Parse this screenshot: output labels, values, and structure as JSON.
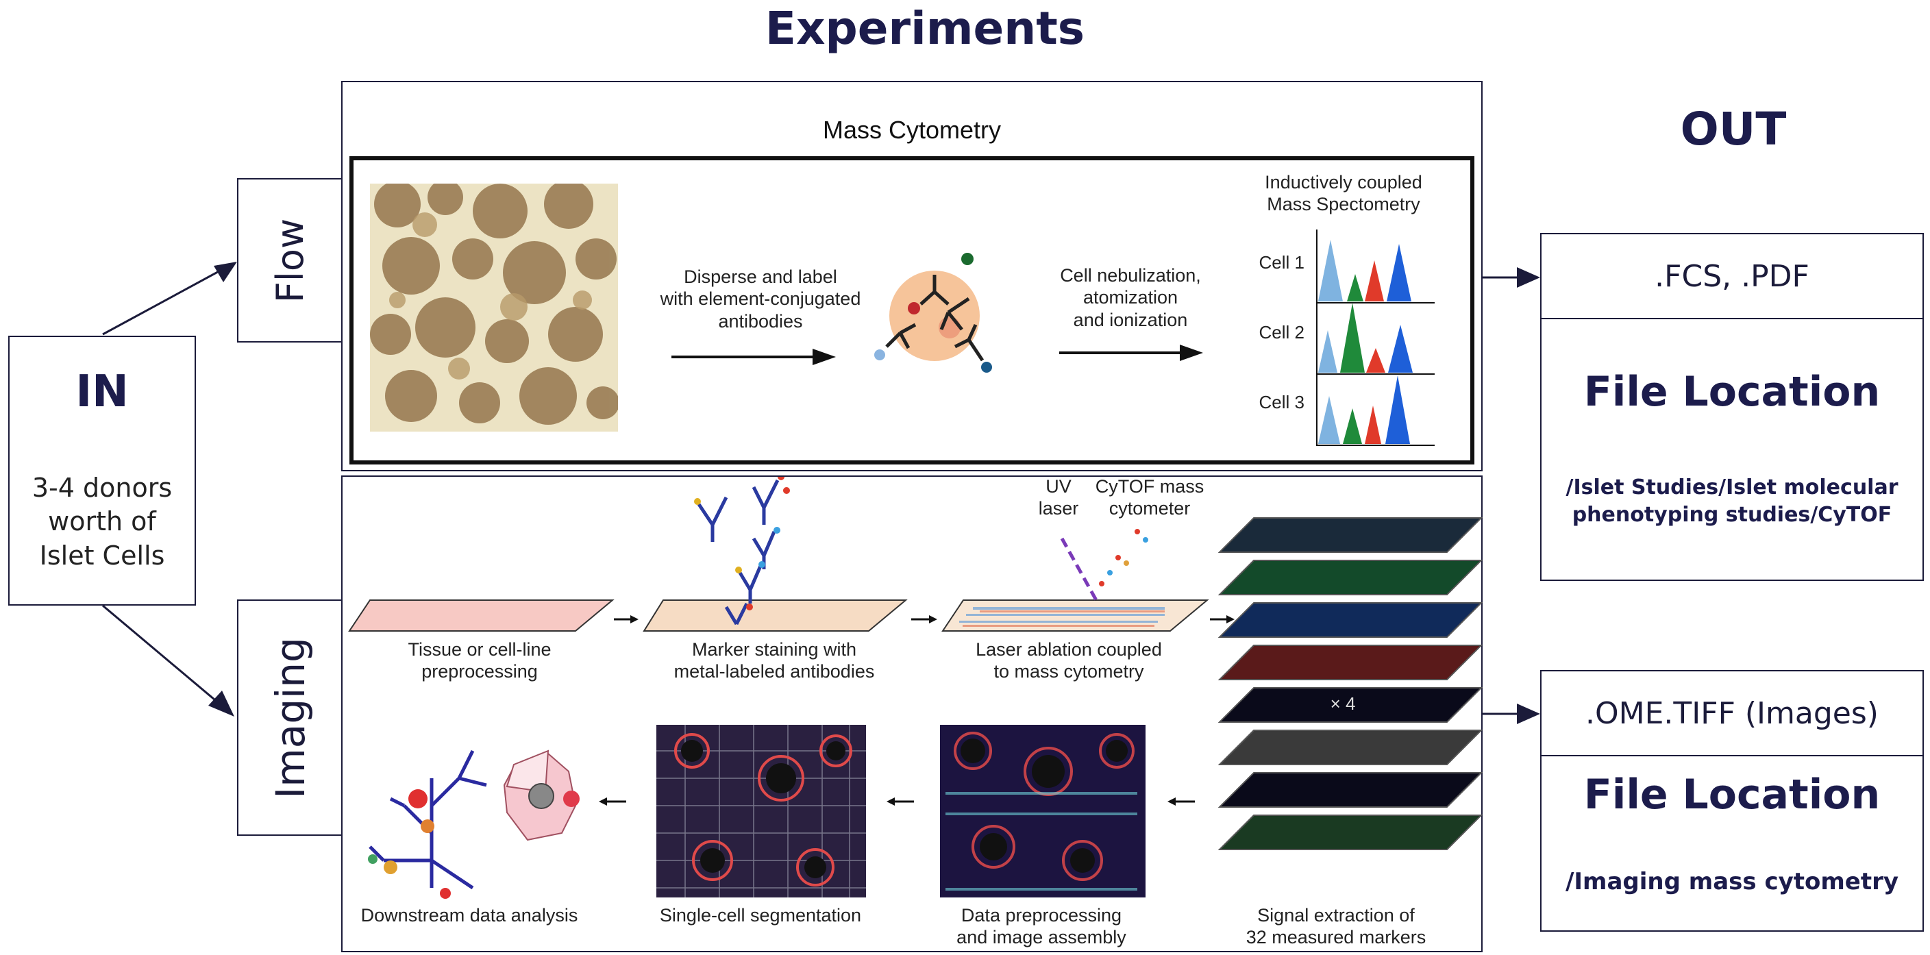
{
  "header": {
    "title": "Experiments",
    "out_title": "OUT"
  },
  "input": {
    "title": "IN",
    "description": "3-4 donors\nworth of\nIslet Cells"
  },
  "branches": {
    "flow": "Flow",
    "imaging": "Imaging"
  },
  "mass_cytometry": {
    "title": "Mass Cytometry",
    "step1": "Disperse and label\nwith element-conjugated\nantibodies",
    "step2": "Cell nebulization,\natomization\nand ionization",
    "icpms": "Inductively coupled\nMass Spectometry",
    "cells": [
      "Cell 1",
      "Cell 2",
      "Cell 3"
    ],
    "colors": {
      "blue": "#7fb3e0",
      "green": "#1f8a3a",
      "red": "#e03a2a",
      "darkblue": "#1e5fd8"
    }
  },
  "imaging_panel": {
    "uv_laser": "UV\nlaser",
    "cytof": "CyTOF mass\ncytometer",
    "step_tissue": "Tissue or cell-line\npreprocessing",
    "step_marker": "Marker staining with\nmetal-labeled antibodies",
    "step_ablation": "Laser ablation coupled\nto mass cytometry",
    "step_signal": "Signal extraction of\n32 measured  markers",
    "step_data": "Data preprocessing\nand image assembly",
    "step_segmentation": "Single-cell segmentation",
    "step_downstream": "Downstream data analysis",
    "multiplier": "× 4"
  },
  "outputs": {
    "flow": {
      "format": ".FCS, .PDF",
      "loc_title": "File Location",
      "path": "/Islet Studies/Islet molecular\nphenotyping studies/CyTOF"
    },
    "imaging": {
      "format": ".OME.TIFF (Images)",
      "loc_title": "File Location",
      "path": "/Imaging mass cytometry"
    }
  }
}
